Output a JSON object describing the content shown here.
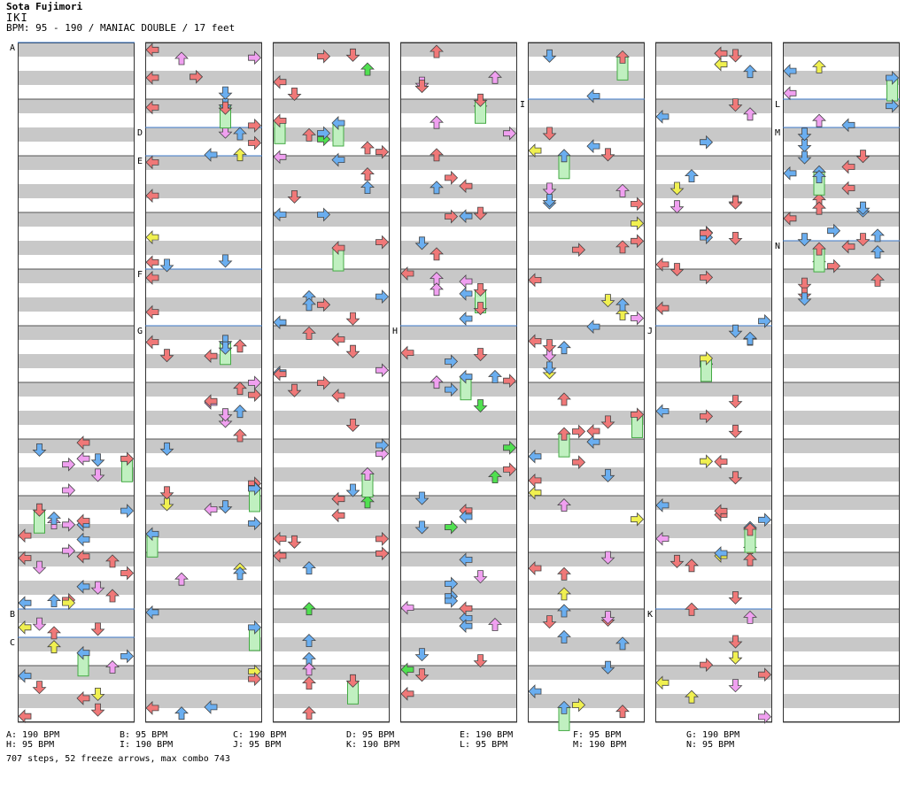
{
  "header": {
    "artist": "Sota Fujimori",
    "title": "IKI",
    "info": "BPM: 95 - 190 / MANIAC DOUBLE / 17 feet"
  },
  "colors": {
    "stripe": "#c8c8c8",
    "measure_line": "#3c78c8",
    "red": "#f07878",
    "blue": "#6aaef0",
    "pink": "#f0a0f0",
    "yellow": "#f0f050",
    "green": "#50e050",
    "freeze": "#c0f0c0"
  },
  "markers": [
    "A",
    "B",
    "C",
    "D",
    "E",
    "F",
    "G",
    "H",
    "I",
    "J",
    "K",
    "L",
    "M",
    "N"
  ],
  "bpm_legend": [
    {
      "label": "A: 190 BPM"
    },
    {
      "label": "B: 95 BPM"
    },
    {
      "label": "C: 190 BPM"
    },
    {
      "label": "D: 95 BPM"
    },
    {
      "label": "E: 190 BPM"
    },
    {
      "label": "F: 95 BPM"
    },
    {
      "label": "G: 190 BPM"
    },
    {
      "label": "H: 95 BPM"
    },
    {
      "label": "I: 190 BPM"
    },
    {
      "label": "J: 95 BPM"
    },
    {
      "label": "K: 190 BPM"
    },
    {
      "label": "L: 95 BPM"
    },
    {
      "label": "M: 190 BPM"
    },
    {
      "label": "N: 95 BPM"
    }
  ],
  "stats": "707 steps, 52 freeze arrows, max combo 743"
}
